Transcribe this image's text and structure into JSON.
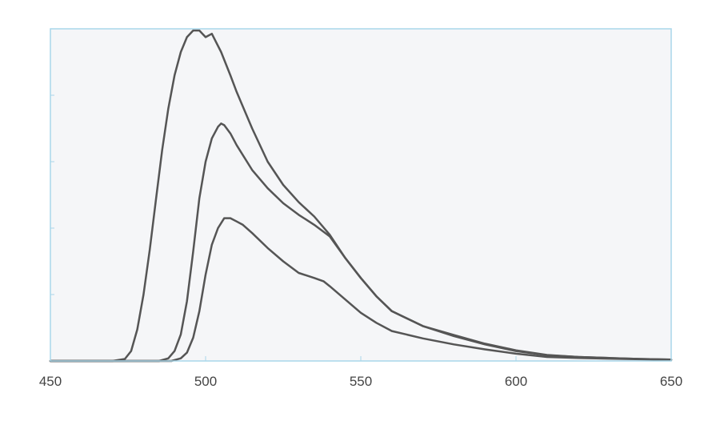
{
  "chart_data": {
    "type": "line",
    "title": "",
    "xlabel": "",
    "ylabel": "",
    "xlim": [
      450,
      650
    ],
    "ylim": [
      0,
      1.0
    ],
    "x_ticks": [
      "450",
      "500",
      "550",
      "600",
      "650"
    ],
    "x_tick_values": [
      450,
      500,
      550,
      600,
      650
    ],
    "y_tick_values": [
      0.2,
      0.4,
      0.6,
      0.8
    ],
    "grid": false,
    "legend": "none",
    "colors": {
      "line": "#555555",
      "plot_bg": "#f5f6f8",
      "frame": "#a9d7ea",
      "tick": "#a9d7ea"
    },
    "series": [
      {
        "x": [
          450,
          470,
          474,
          476,
          478,
          480,
          482,
          484,
          486,
          488,
          490,
          492,
          494,
          496,
          498,
          500,
          502,
          505,
          508,
          510,
          515,
          520,
          525,
          530,
          535,
          540,
          545,
          550,
          555,
          560,
          570,
          580,
          590,
          600,
          610,
          620,
          630,
          640,
          650
        ],
        "values": [
          0.0,
          0.0,
          0.006,
          0.03,
          0.095,
          0.2,
          0.335,
          0.485,
          0.635,
          0.76,
          0.86,
          0.93,
          0.975,
          0.995,
          0.995,
          0.975,
          0.985,
          0.93,
          0.86,
          0.81,
          0.7,
          0.6,
          0.53,
          0.478,
          0.435,
          0.38,
          0.31,
          0.25,
          0.195,
          0.15,
          0.105,
          0.078,
          0.052,
          0.032,
          0.018,
          0.012,
          0.009,
          0.006,
          0.004
        ]
      },
      {
        "x": [
          450,
          485,
          488,
          490,
          492,
          494,
          496,
          498,
          500,
          502,
          504,
          505,
          506,
          508,
          510,
          515,
          520,
          525,
          530,
          535,
          540,
          545,
          550,
          555,
          560,
          570,
          580,
          590,
          600,
          610,
          620,
          630,
          640,
          650
        ],
        "values": [
          0.0,
          0.0,
          0.008,
          0.03,
          0.08,
          0.18,
          0.33,
          0.49,
          0.6,
          0.67,
          0.705,
          0.715,
          0.71,
          0.685,
          0.65,
          0.575,
          0.52,
          0.475,
          0.44,
          0.41,
          0.375,
          0.31,
          0.25,
          0.195,
          0.15,
          0.105,
          0.075,
          0.05,
          0.03,
          0.017,
          0.012,
          0.009,
          0.006,
          0.004
        ]
      },
      {
        "x": [
          450,
          489,
          492,
          494,
          496,
          498,
          500,
          502,
          504,
          506,
          508,
          510,
          512,
          515,
          520,
          525,
          530,
          535,
          538,
          540,
          545,
          550,
          555,
          560,
          570,
          580,
          590,
          600,
          610,
          620,
          630,
          640,
          650
        ],
        "values": [
          0.0,
          0.0,
          0.008,
          0.025,
          0.07,
          0.15,
          0.26,
          0.35,
          0.4,
          0.43,
          0.43,
          0.42,
          0.41,
          0.385,
          0.34,
          0.3,
          0.265,
          0.25,
          0.24,
          0.225,
          0.185,
          0.145,
          0.115,
          0.09,
          0.068,
          0.05,
          0.035,
          0.022,
          0.012,
          0.009,
          0.007,
          0.005,
          0.003
        ]
      }
    ]
  }
}
